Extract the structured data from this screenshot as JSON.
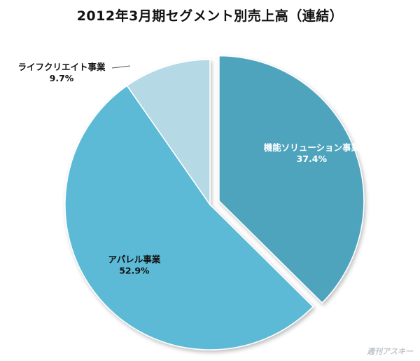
{
  "chart_data": {
    "type": "pie",
    "title": "2012年3月期セグメント別売上高（連結）",
    "slices": [
      {
        "label": "機能ソリューション事業",
        "value": 37.4,
        "value_text": "37.4%",
        "color": "#4fa4bd",
        "exploded": true,
        "label_color": "#ffffff"
      },
      {
        "label": "アパレル事業",
        "value": 52.9,
        "value_text": "52.9%",
        "color": "#5bbad6",
        "exploded": false,
        "label_color": "#111111"
      },
      {
        "label": "ライフクリエイト事業",
        "value": 9.7,
        "value_text": "9.7%",
        "color": "#b6d9e6",
        "exploded": false,
        "label_color": "#111111"
      }
    ]
  },
  "watermark": "週刊アスキー"
}
